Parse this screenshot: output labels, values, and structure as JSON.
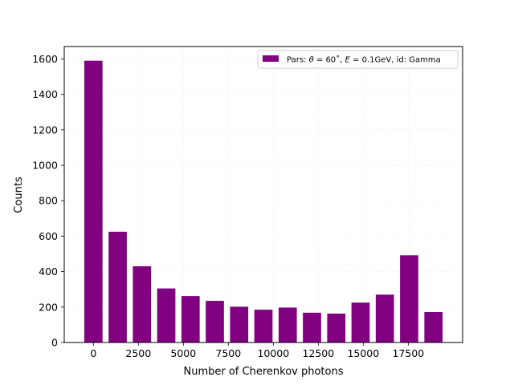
{
  "chart_data": {
    "type": "bar",
    "x": [
      0,
      1350,
      2700,
      4050,
      5400,
      6750,
      8100,
      9450,
      10800,
      12150,
      13500,
      14850,
      16200,
      17550,
      18900
    ],
    "values": [
      1590,
      625,
      430,
      305,
      262,
      235,
      202,
      185,
      197,
      168,
      163,
      225,
      270,
      492,
      172
    ],
    "bar_color": "#800080",
    "xlabel": "Number of Cherenkov photons",
    "ylabel": "Counts",
    "xlim": [
      -1620,
      20520
    ],
    "ylim": [
      0,
      1670
    ],
    "xticks": [
      0,
      2500,
      5000,
      7500,
      10000,
      12500,
      15000,
      17500
    ],
    "yticks": [
      0,
      200,
      400,
      600,
      800,
      1000,
      1200,
      1400,
      1600
    ],
    "grid": true,
    "legend": {
      "placement": "top-right",
      "entries": [
        {
          "prefix": "Pars: ",
          "theta_sym": "θ",
          "theta_val": " = 60˚, ",
          "e_sym": "E",
          "e_val": " = 0.1GeV, id: Gamma"
        }
      ]
    }
  }
}
